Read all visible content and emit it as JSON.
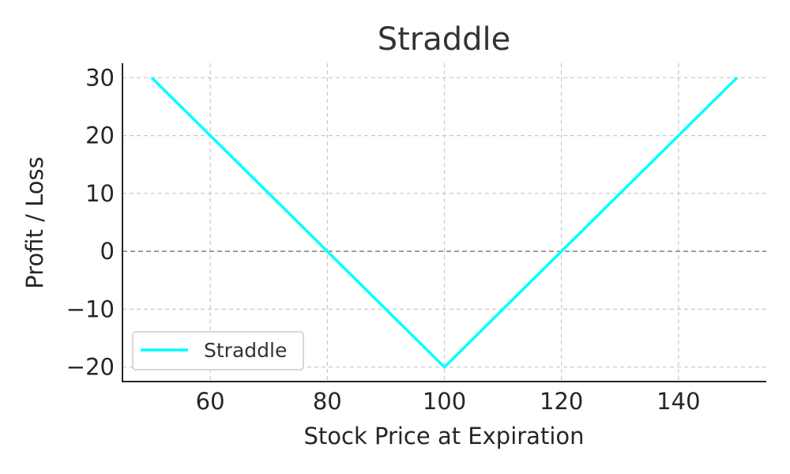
{
  "chart_data": {
    "type": "line",
    "title": "Straddle",
    "xlabel": "Stock Price at Expiration",
    "ylabel": "Profit / Loss",
    "xlim": [
      45,
      155
    ],
    "ylim": [
      -22.5,
      32.5
    ],
    "x_ticks": [
      60,
      80,
      100,
      120,
      140
    ],
    "y_ticks": [
      -20,
      -10,
      0,
      10,
      20,
      30
    ],
    "x_tick_labels": [
      "60",
      "80",
      "100",
      "120",
      "140"
    ],
    "y_tick_labels": [
      "−20",
      "−10",
      "0",
      "10",
      "20",
      "30"
    ],
    "grid": true,
    "zero_line": true,
    "legend_position": "lower-left",
    "series": [
      {
        "name": "Straddle",
        "color": "#00ffff",
        "x": [
          50,
          100,
          150
        ],
        "y": [
          30,
          -20,
          30
        ]
      }
    ]
  }
}
